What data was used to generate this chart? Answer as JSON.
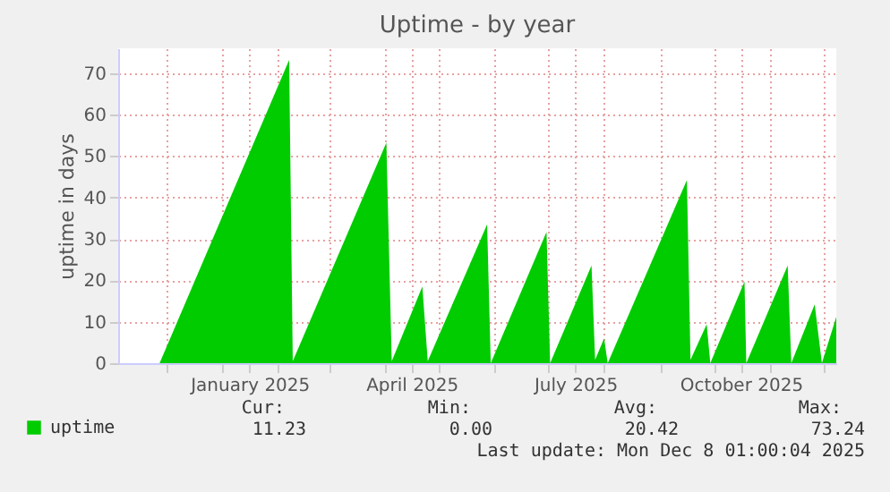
{
  "chart_data": {
    "type": "area",
    "title": "Uptime - by year",
    "ylabel": "uptime in days",
    "x": [
      "2024-11-27",
      "2025-02-07",
      "2025-02-09",
      "2025-04-02",
      "2025-04-05",
      "2025-04-22",
      "2025-04-25",
      "2025-05-28",
      "2025-05-30",
      "2025-06-30",
      "2025-07-02",
      "2025-07-25",
      "2025-07-27",
      "2025-08-01",
      "2025-08-03",
      "2025-09-16",
      "2025-09-18",
      "2025-09-27",
      "2025-09-29",
      "2025-10-18",
      "2025-10-19",
      "2025-11-11",
      "2025-11-13",
      "2025-11-26",
      "2025-11-30",
      "2025-12-08"
    ],
    "series": [
      {
        "name": "uptime",
        "color": "#00cc00",
        "values": [
          0,
          73.2,
          0.5,
          53.2,
          0.5,
          18.5,
          0.5,
          33.5,
          0,
          31.7,
          0,
          23.6,
          0.8,
          6,
          0,
          44.2,
          0.8,
          9.4,
          0,
          19.7,
          0,
          23.6,
          0,
          14.2,
          0,
          11.2
        ]
      }
    ],
    "xlim": [
      "2024-11-04",
      "2025-12-08"
    ],
    "xticks": [
      {
        "value": "2024-12-01",
        "label": null
      },
      {
        "value": "2025-01-01",
        "label": null
      },
      {
        "value": "2025-01-16",
        "label": "January 2025"
      },
      {
        "value": "2025-02-01",
        "label": null
      },
      {
        "value": "2025-03-01",
        "label": null
      },
      {
        "value": "2025-04-01",
        "label": null
      },
      {
        "value": "2025-04-16",
        "label": "April 2025"
      },
      {
        "value": "2025-05-01",
        "label": null
      },
      {
        "value": "2025-06-01",
        "label": null
      },
      {
        "value": "2025-07-01",
        "label": null
      },
      {
        "value": "2025-07-16",
        "label": "July 2025"
      },
      {
        "value": "2025-08-01",
        "label": null
      },
      {
        "value": "2025-09-01",
        "label": null
      },
      {
        "value": "2025-10-01",
        "label": null
      },
      {
        "value": "2025-10-16",
        "label": "October 2025"
      },
      {
        "value": "2025-11-01",
        "label": null
      },
      {
        "value": "2025-12-01",
        "label": null
      }
    ],
    "ylim": [
      0,
      76
    ],
    "yticks": [
      0,
      10,
      20,
      30,
      40,
      50,
      60,
      70
    ],
    "grid": true,
    "legend": "bottom",
    "annotations": [
      "Cur:",
      "11.23",
      "Min:",
      "0.00",
      "Avg:",
      "20.42",
      "Max:",
      "73.24",
      "Last update: Mon Dec  8 01:00:04 2025"
    ]
  }
}
